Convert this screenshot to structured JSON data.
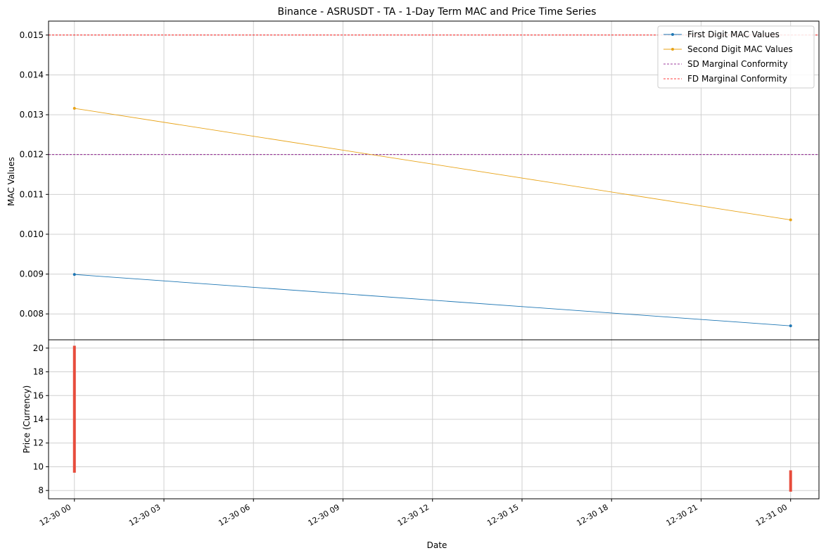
{
  "chart_data": {
    "type": "line",
    "title": "Binance - ASRUSDT - TA - 1-Day Term MAC and Price Time Series",
    "xlabel": "Date",
    "x_ticks": [
      "12-30 00",
      "12-30 03",
      "12-30 06",
      "12-30 09",
      "12-30 12",
      "12-30 15",
      "12-30 18",
      "12-30 21",
      "12-31 00"
    ],
    "x_range": [
      "12-29 23:08",
      "12-31 00:57"
    ],
    "mac_panel": {
      "ylabel": "MAC Values",
      "ylim": [
        0.00735,
        0.01535
      ],
      "y_ticks": [
        "0.008",
        "0.009",
        "0.010",
        "0.011",
        "0.012",
        "0.013",
        "0.014",
        "0.015"
      ],
      "grid": true,
      "legend_position": "top-right",
      "series": [
        {
          "name": "First Digit MAC Values",
          "color": "#1f77b4",
          "x": [
            "12-30 00",
            "12-31 00"
          ],
          "y": [
            0.00899,
            0.0077
          ]
        },
        {
          "name": "Second Digit MAC Values",
          "color": "#e8a317",
          "x": [
            "12-30 00",
            "12-31 00"
          ],
          "y": [
            0.01316,
            0.01036
          ]
        }
      ],
      "reference_lines": [
        {
          "name": "SD Marginal Conformity",
          "y": 0.012,
          "color": "#800080",
          "style": "dashed"
        },
        {
          "name": "FD Marginal Conformity",
          "y": 0.015,
          "color": "#ff0000",
          "style": "dashed"
        }
      ]
    },
    "price_panel": {
      "ylabel": "Price (Currency)",
      "ylim": [
        7.3,
        20.7
      ],
      "y_ticks": [
        "8",
        "10",
        "12",
        "14",
        "16",
        "18",
        "20"
      ],
      "grid": true,
      "color": "#e74c3c",
      "bars": [
        {
          "x": "12-30 00",
          "low": 9.5,
          "high": 20.2
        },
        {
          "x": "12-31 00",
          "low": 7.9,
          "high": 9.7
        }
      ]
    }
  }
}
